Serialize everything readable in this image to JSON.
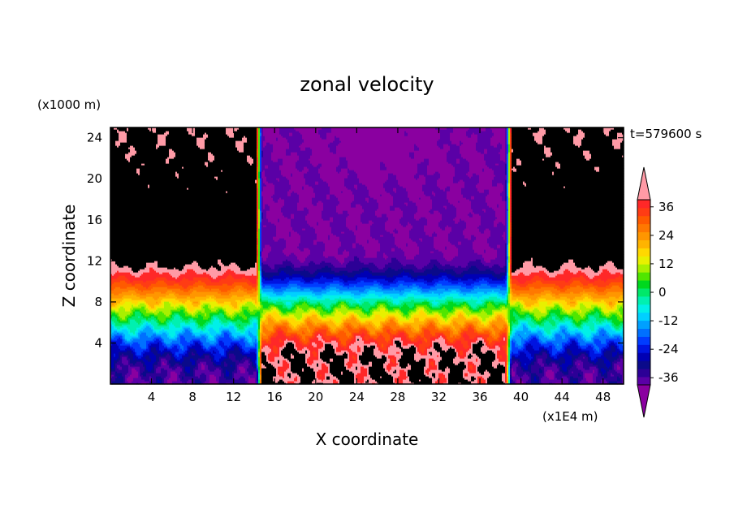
{
  "chart_data": {
    "type": "heatmap",
    "title": "zonal velocity",
    "xlabel": "X coordinate",
    "ylabel": "Z coordinate",
    "x_unit_label": "(x1E4 m)",
    "y_unit_label": "(x1000 m)",
    "time_label": "t=579600 s",
    "xlim": [
      0,
      50
    ],
    "ylim": [
      0,
      25
    ],
    "x_ticks": [
      4,
      8,
      12,
      16,
      20,
      24,
      28,
      32,
      36,
      40,
      44,
      48
    ],
    "y_ticks": [
      4,
      8,
      12,
      16,
      20,
      24
    ],
    "colorbar": {
      "levels": [
        -42,
        -39,
        -36,
        -33,
        -30,
        -27,
        -24,
        -21,
        -18,
        -15,
        -12,
        -9,
        -6,
        -3,
        0,
        3,
        6,
        9,
        12,
        15,
        18,
        21,
        24,
        27,
        30,
        33,
        36,
        39,
        42
      ],
      "colors": [
        "#8a00a0",
        "#5a00a6",
        "#2c0096",
        "#0a0a8a",
        "#0000b4",
        "#0014e0",
        "#003cff",
        "#0070ff",
        "#00a0ff",
        "#00d0ff",
        "#00f0e8",
        "#00f0b0",
        "#00e86a",
        "#00d81e",
        "#50e600",
        "#a8f000",
        "#e8f000",
        "#ffd800",
        "#ffb400",
        "#ff9600",
        "#ff7800",
        "#ff5a00",
        "#ff3c14",
        "#ff2828",
        "#ff9aa6"
      ],
      "tick_labels": [
        "36",
        "24",
        "12",
        "0",
        "-12",
        "-24",
        "-36"
      ],
      "tick_values": [
        36,
        24,
        12,
        0,
        -12,
        -24,
        -36
      ]
    },
    "field_description_values": {
      "x_front_left": 14.5,
      "x_front_right": 38.8,
      "outer_upper_max": 36,
      "core_upper_min": -39,
      "core_lower_max": 33,
      "outer_lower_min": -36
    }
  }
}
